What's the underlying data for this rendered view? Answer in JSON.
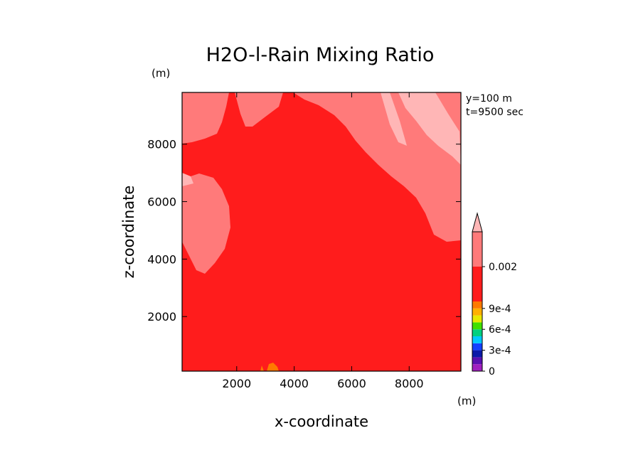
{
  "chart_data": {
    "type": "heatmap",
    "title": "H2O-l-Rain Mixing Ratio",
    "xlabel": "x-coordinate",
    "ylabel": "z-coordinate",
    "x_unit": "(m)",
    "y_unit": "(m)",
    "info": [
      "y=100 m",
      "t=9500 sec"
    ],
    "xlim": [
      100,
      9800
    ],
    "ylim": [
      100,
      9800
    ],
    "x_ticks": [
      2000,
      4000,
      6000,
      8000
    ],
    "y_ticks": [
      2000,
      4000,
      6000,
      8000
    ],
    "x_tick_labels": [
      "2000",
      "4000",
      "6000",
      "8000"
    ],
    "y_tick_labels": [
      "2000",
      "4000",
      "6000",
      "8000"
    ],
    "background_level_color": "#ff1c1c",
    "colorbar": {
      "levels": [
        {
          "low": 0,
          "high": 0.0001,
          "color": "#a020c0"
        },
        {
          "low": 0.0001,
          "high": 0.0002,
          "color": "#5a10b0"
        },
        {
          "low": 0.0002,
          "high": 0.0003,
          "color": "#0a1aa8"
        },
        {
          "low": 0.0003,
          "high": 0.0004,
          "color": "#1440ff"
        },
        {
          "low": 0.0004,
          "high": 0.0005,
          "color": "#00c8ff"
        },
        {
          "low": 0.0005,
          "high": 0.0006,
          "color": "#00d080"
        },
        {
          "low": 0.0006,
          "high": 0.0007,
          "color": "#40e000"
        },
        {
          "low": 0.0007,
          "high": 0.0008,
          "color": "#e8e800"
        },
        {
          "low": 0.0008,
          "high": 0.0009,
          "color": "#ffb000"
        },
        {
          "low": 0.0009,
          "high": 0.001,
          "color": "#ff7a00"
        },
        {
          "low": 0.001,
          "high": 0.002,
          "color": "#ff1c1c"
        },
        {
          "low": 0.002,
          "high": 0.003,
          "color": "#ff7a7a"
        },
        {
          "low": 0.003,
          "high": null,
          "color": "#ffb6b6"
        }
      ],
      "tick_values": [
        0,
        0.0003,
        0.0006,
        0.0009,
        0.002
      ],
      "tick_labels": [
        "0",
        "3e-4",
        "6e-4",
        "9e-4",
        "0.002"
      ]
    }
  }
}
